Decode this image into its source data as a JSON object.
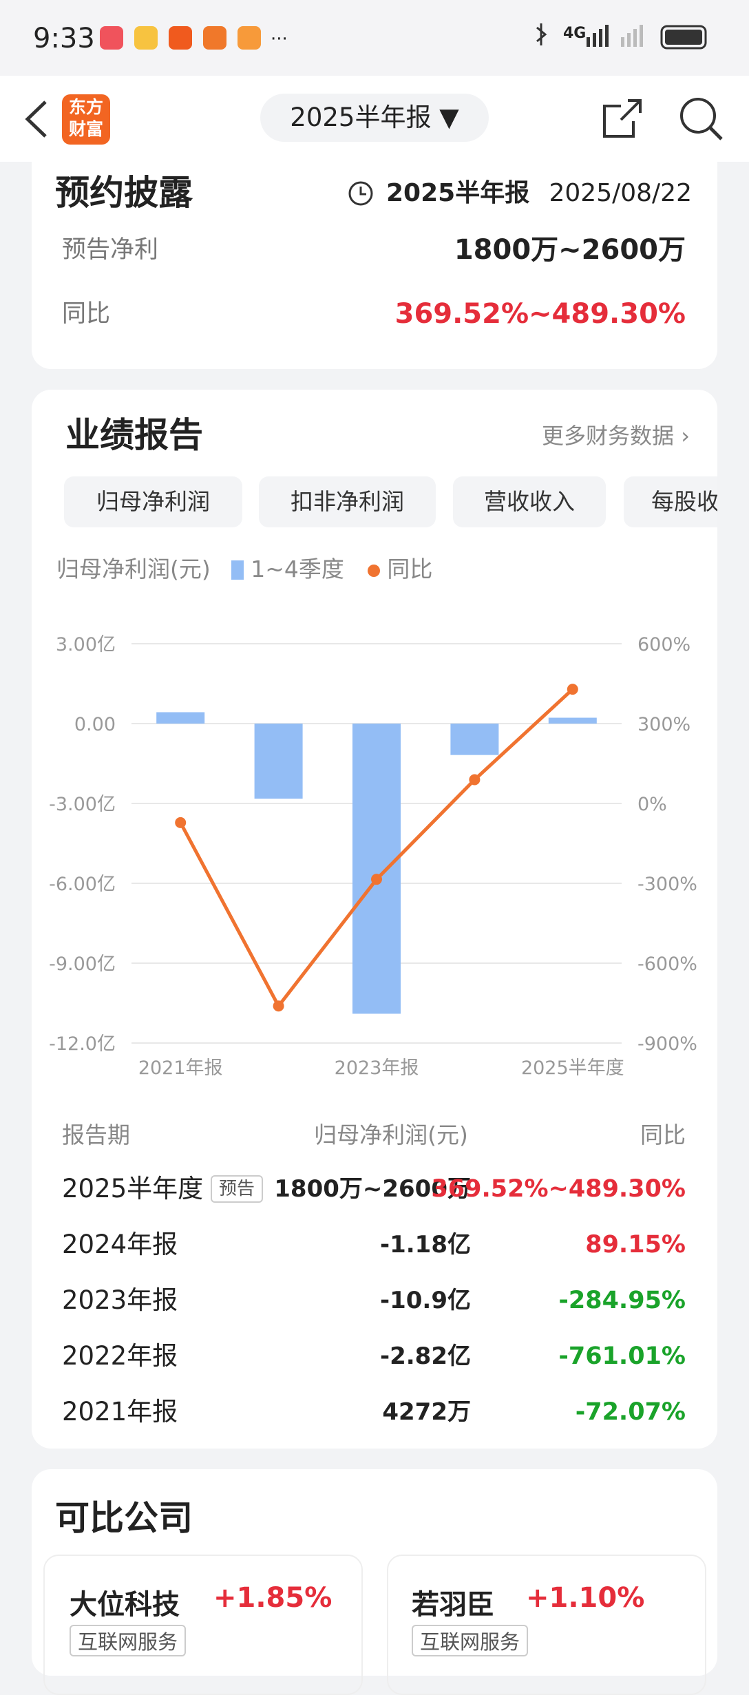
{
  "status_bar": {
    "time": "9:33",
    "network": "4G"
  },
  "nav": {
    "logo": [
      "东方",
      "财富"
    ],
    "report_selector": "2025半年报"
  },
  "disclosure": {
    "title": "预约披露",
    "report": "2025半年报",
    "date": "2025/08/22",
    "rows": [
      {
        "label": "预告净利",
        "value": "1800万~2600万"
      },
      {
        "label": "同比",
        "value": "369.52%~489.30%",
        "color": "#e52d3a"
      }
    ]
  },
  "performance": {
    "title": "业绩报告",
    "more": "更多财务数据",
    "tabs": [
      "归母净利润",
      "扣非净利润",
      "营收收入",
      "每股收"
    ],
    "active_tab": 0
  },
  "chart_data": {
    "type": "combo",
    "ylabel": "归母净利润(元)",
    "categories": [
      "2021年报",
      null,
      "2023年报",
      null,
      "2025半年度"
    ],
    "series": [
      {
        "name": "1~4季度",
        "type": "bar",
        "color": "#93bdf5",
        "values": [
          0.4272,
          -2.82,
          -10.9,
          -1.18,
          0.22
        ]
      },
      {
        "name": "同比",
        "type": "line",
        "axis": "y2",
        "color": "#f07330",
        "values": [
          -72.07,
          -761.01,
          -284.95,
          89.15,
          429
        ]
      }
    ],
    "ylim": [
      -12,
      3
    ],
    "yticks": [
      {
        "value": 3,
        "label": "3.00亿"
      },
      {
        "value": 0,
        "label": "0.00"
      },
      {
        "value": -3,
        "label": "-3.00亿"
      },
      {
        "value": -6,
        "label": "-6.00亿"
      },
      {
        "value": -9,
        "label": "-9.00亿"
      },
      {
        "value": -12,
        "label": "-12.0亿"
      }
    ],
    "y2lim": [
      -900,
      600
    ],
    "y2ticks": [
      {
        "value": 600,
        "label": "600%"
      },
      {
        "value": 300,
        "label": "300%"
      },
      {
        "value": 0,
        "label": "0%"
      },
      {
        "value": -300,
        "label": "-300%"
      },
      {
        "value": -600,
        "label": "-600%"
      },
      {
        "value": -900,
        "label": "-900%"
      }
    ],
    "grid": true
  },
  "table": {
    "headers": [
      "报告期",
      "归母净利润(元)",
      "同比"
    ],
    "rows": [
      {
        "period": "2025半年度",
        "badge": "预告",
        "value": "1800万~2600万",
        "yoy": "369.52%~489.30%",
        "color": "#e52d3a"
      },
      {
        "period": "2024年报",
        "value": "-1.18亿",
        "yoy": "89.15%",
        "color": "#e52d3a"
      },
      {
        "period": "2023年报",
        "value": "-10.9亿",
        "yoy": "-284.95%",
        "color": "#1aa32a"
      },
      {
        "period": "2022年报",
        "value": "-2.82亿",
        "yoy": "-761.01%",
        "color": "#1aa32a"
      },
      {
        "period": "2021年报",
        "value": "4272万",
        "yoy": "-72.07%",
        "color": "#1aa32a"
      }
    ]
  },
  "peers": {
    "title": "可比公司",
    "items": [
      {
        "name": "大位科技",
        "change": "+1.85%",
        "industry": "互联网服务"
      },
      {
        "name": "若羽臣",
        "change": "+1.10%",
        "industry": "互联网服务"
      }
    ]
  }
}
